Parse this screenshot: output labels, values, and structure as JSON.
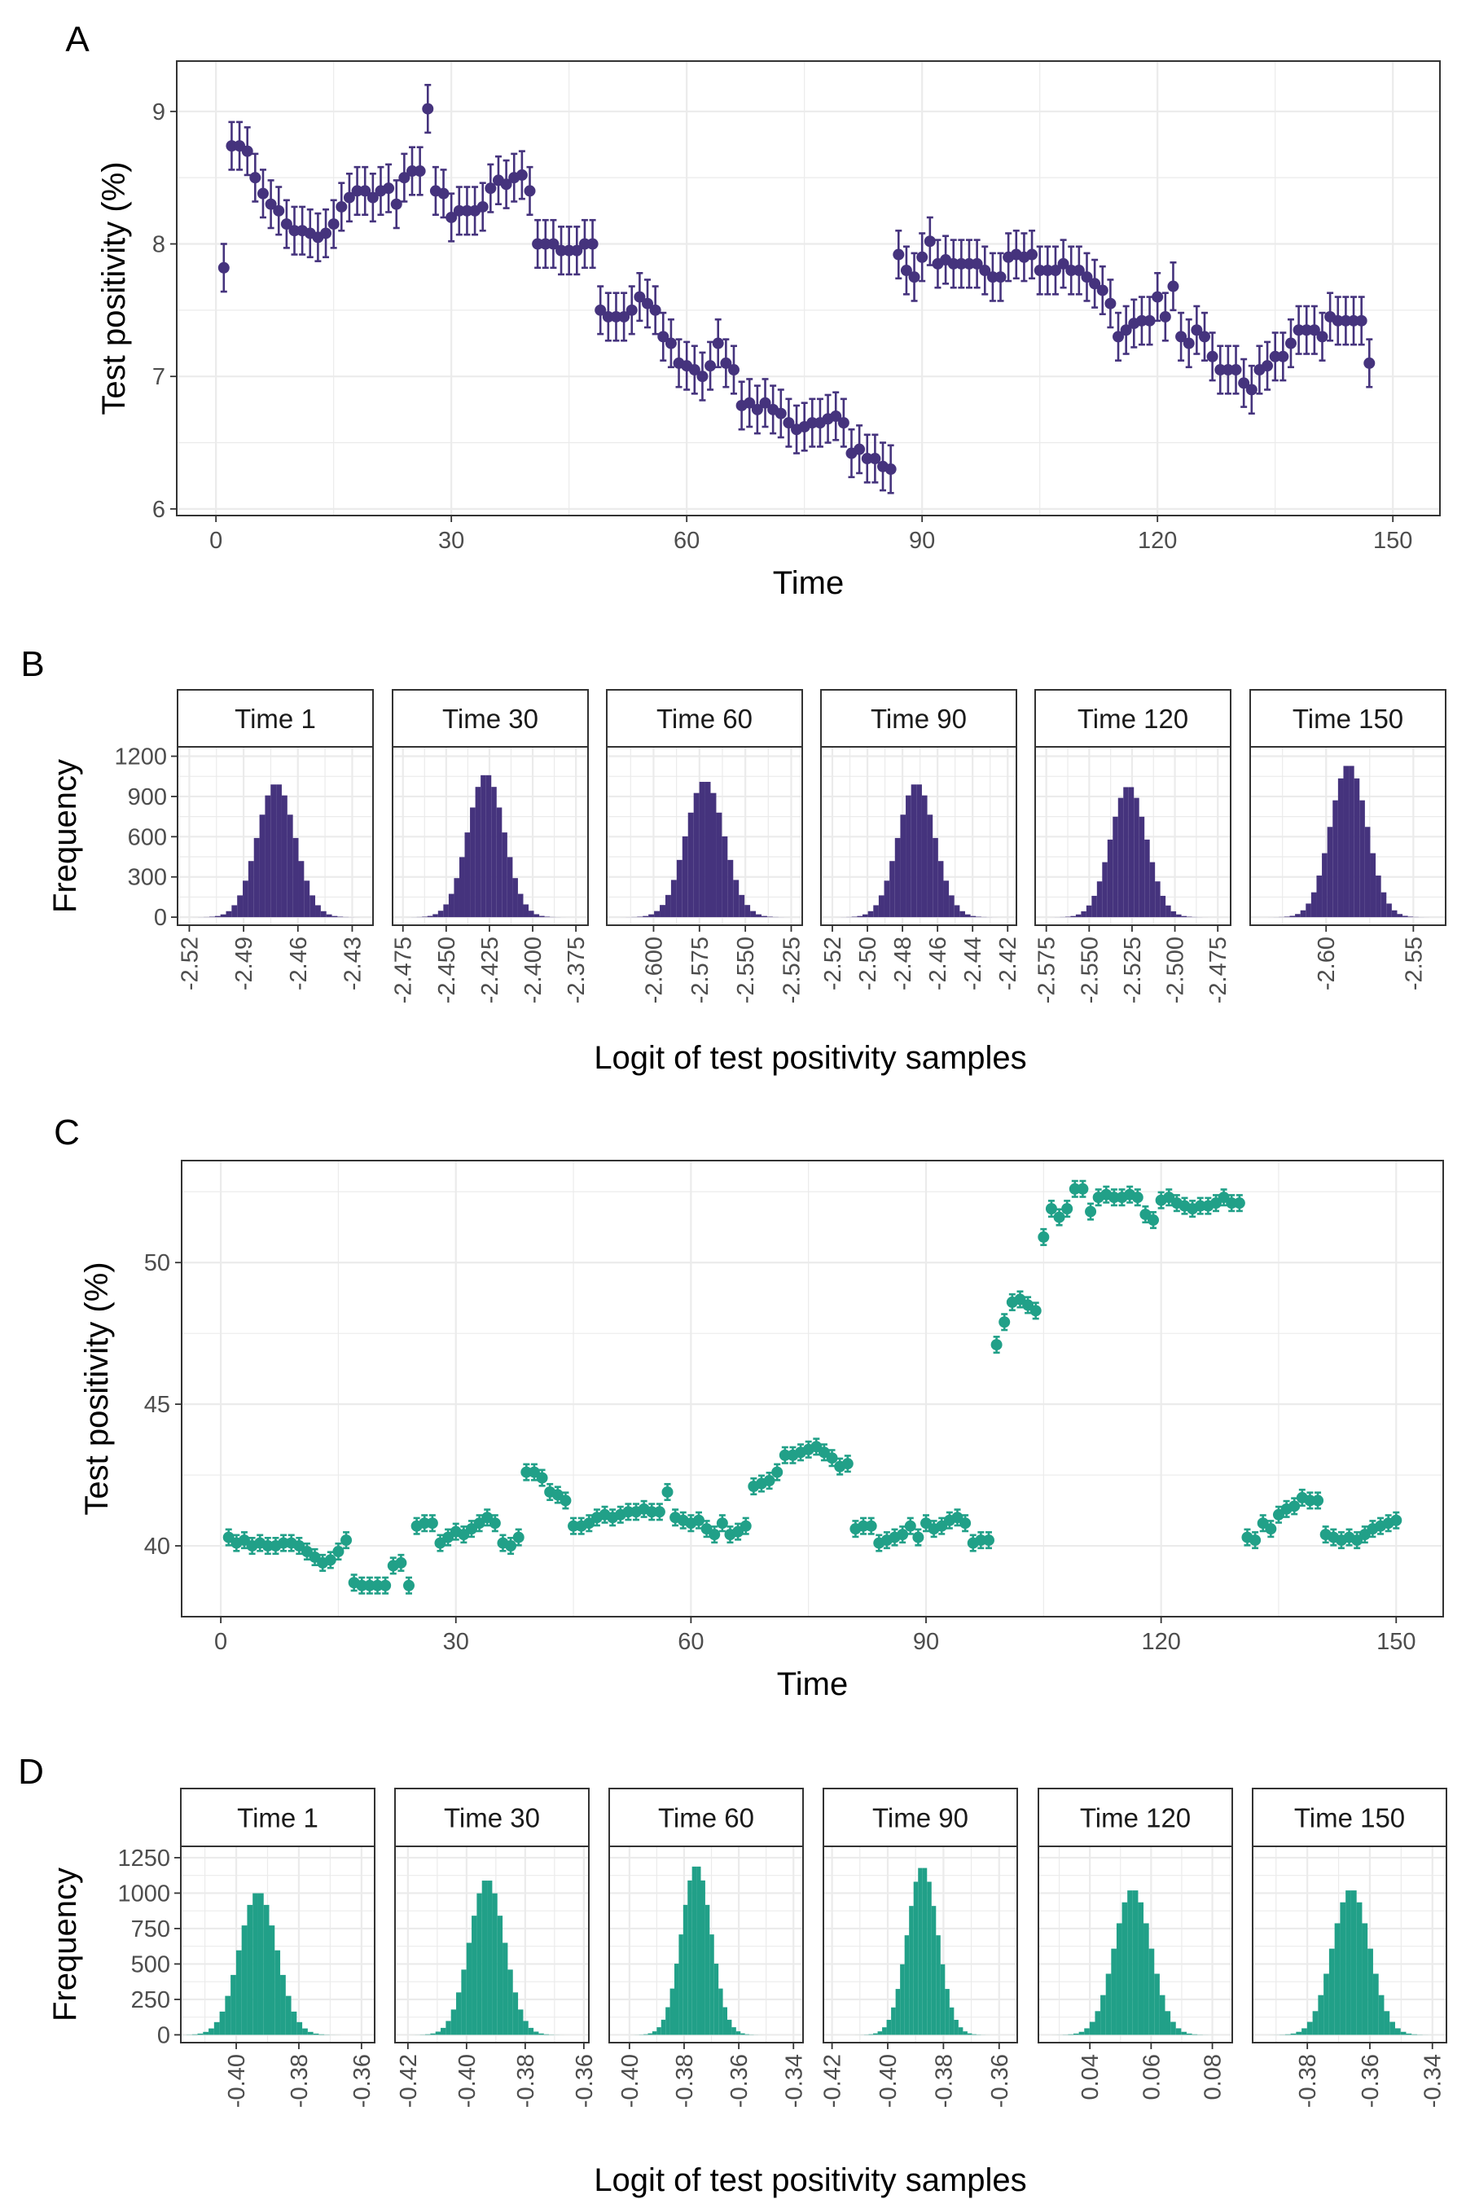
{
  "colors": {
    "purple": "#45337d",
    "teal": "#21a088",
    "grid": "#ebebeb",
    "frame": "#333333"
  },
  "chart_data": [
    {
      "panel": "A",
      "type": "scatter",
      "xlabel": "Time",
      "ylabel": "Test positivity (%)",
      "xlim": [
        -5,
        156
      ],
      "ylim": [
        5.95,
        9.38
      ],
      "xticks": [
        0,
        30,
        60,
        90,
        120,
        150
      ],
      "yticks": [
        6,
        7,
        8,
        9
      ],
      "error_bar_halfwidth": 0.18,
      "x_start": 1,
      "y": [
        7.82,
        8.74,
        8.74,
        8.7,
        8.5,
        8.38,
        8.3,
        8.25,
        8.15,
        8.1,
        8.1,
        8.08,
        8.05,
        8.08,
        8.15,
        8.28,
        8.35,
        8.4,
        8.4,
        8.35,
        8.4,
        8.42,
        8.3,
        8.5,
        8.55,
        8.55,
        9.02,
        8.4,
        8.38,
        8.2,
        8.25,
        8.25,
        8.25,
        8.28,
        8.42,
        8.48,
        8.45,
        8.5,
        8.52,
        8.4,
        8.0,
        8.0,
        8.0,
        7.95,
        7.95,
        7.95,
        8.0,
        8.0,
        7.5,
        7.45,
        7.45,
        7.45,
        7.5,
        7.6,
        7.55,
        7.5,
        7.3,
        7.25,
        7.1,
        7.08,
        7.05,
        7.0,
        7.08,
        7.25,
        7.1,
        7.05,
        6.78,
        6.8,
        6.75,
        6.8,
        6.75,
        6.72,
        6.65,
        6.6,
        6.62,
        6.65,
        6.65,
        6.68,
        6.7,
        6.65,
        6.42,
        6.45,
        6.38,
        6.38,
        6.32,
        6.3,
        7.92,
        7.8,
        7.75,
        7.9,
        8.02,
        7.85,
        7.88,
        7.85,
        7.85,
        7.85,
        7.85,
        7.8,
        7.75,
        7.75,
        7.9,
        7.92,
        7.9,
        7.92,
        7.8,
        7.8,
        7.8,
        7.85,
        7.8,
        7.8,
        7.75,
        7.7,
        7.65,
        7.55,
        7.3,
        7.35,
        7.4,
        7.42,
        7.42,
        7.6,
        7.45,
        7.68,
        7.3,
        7.25,
        7.35,
        7.3,
        7.15,
        7.05,
        7.05,
        7.05,
        6.95,
        6.9,
        7.05,
        7.08,
        7.15,
        7.15,
        7.25,
        7.35,
        7.35,
        7.35,
        7.3,
        7.45,
        7.42,
        7.42,
        7.42,
        7.42,
        7.1
      ]
    },
    {
      "panel": "B",
      "type": "bar",
      "xlabel": "Logit of test positivity samples",
      "ylabel": "Frequency",
      "ylim": [
        -60,
        1270
      ],
      "yticks": [
        0,
        300,
        600,
        900,
        1200
      ],
      "facets": [
        {
          "title": "Time 1",
          "xlim": [
            -2.5265,
            -2.4185
          ],
          "xticks": [
            -2.52,
            -2.49,
            -2.46,
            -2.43
          ],
          "ticklabels": [
            "-2.52",
            "-2.49",
            "-2.46",
            "-2.43"
          ],
          "center": -2.472,
          "sd": 0.0105,
          "peak": 1000
        },
        {
          "title": "Time 30",
          "xlim": [
            -2.481,
            -2.368
          ],
          "xticks": [
            -2.475,
            -2.45,
            -2.425,
            -2.4,
            -2.375
          ],
          "ticklabels": [
            "-2.475",
            "-2.450",
            "-2.425",
            "-2.400",
            "-2.375"
          ],
          "center": -2.427,
          "sd": 0.0105,
          "peak": 1070
        },
        {
          "title": "Time 60",
          "xlim": [
            -2.6255,
            -2.519
          ],
          "xticks": [
            -2.6,
            -2.575,
            -2.55,
            -2.525
          ],
          "ticklabels": [
            "-2.600",
            "-2.575",
            "-2.550",
            "-2.525"
          ],
          "center": -2.572,
          "sd": 0.0105,
          "peak": 1020
        },
        {
          "title": "Time 90",
          "xlim": [
            -2.5265,
            -2.415
          ],
          "xticks": [
            -2.52,
            -2.5,
            -2.48,
            -2.46,
            -2.44,
            -2.42
          ],
          "ticklabels": [
            "-2.52",
            "-2.50",
            "-2.48",
            "-2.46",
            "-2.44",
            "-2.42"
          ],
          "center": -2.472,
          "sd": 0.0105,
          "peak": 1000
        },
        {
          "title": "Time 120",
          "xlim": [
            -2.5815,
            -2.4675
          ],
          "xticks": [
            -2.575,
            -2.55,
            -2.525,
            -2.5,
            -2.475
          ],
          "ticklabels": [
            "-2.575",
            "-2.550",
            "-2.525",
            "-2.500",
            "-2.475"
          ],
          "center": -2.527,
          "sd": 0.0105,
          "peak": 980
        },
        {
          "title": "Time 150",
          "xlim": [
            -2.6435,
            -2.5315
          ],
          "xticks": [
            -2.6,
            -2.55
          ],
          "ticklabels": [
            "-2.60",
            "-2.55"
          ],
          "center": -2.587,
          "sd": 0.0105,
          "peak": 1140
        }
      ]
    },
    {
      "panel": "C",
      "type": "scatter",
      "xlabel": "Time",
      "ylabel": "Test positivity (%)",
      "xlim": [
        -5,
        156
      ],
      "ylim": [
        37.5,
        53.6
      ],
      "xticks": [
        0,
        30,
        60,
        90,
        120,
        150
      ],
      "yticks": [
        40,
        45,
        50
      ],
      "error_bar_halfwidth": 0.28,
      "x_start": 1,
      "y": [
        40.3,
        40.1,
        40.2,
        40.0,
        40.1,
        40.0,
        40.0,
        40.1,
        40.1,
        40.0,
        39.8,
        39.6,
        39.4,
        39.5,
        39.8,
        40.2,
        38.7,
        38.6,
        38.6,
        38.6,
        38.6,
        39.3,
        39.4,
        38.6,
        40.7,
        40.8,
        40.8,
        40.1,
        40.3,
        40.5,
        40.4,
        40.6,
        40.8,
        41.0,
        40.8,
        40.1,
        40.0,
        40.3,
        42.6,
        42.6,
        42.4,
        41.9,
        41.8,
        41.6,
        40.7,
        40.7,
        40.8,
        41.0,
        41.1,
        41.0,
        41.1,
        41.2,
        41.2,
        41.3,
        41.2,
        41.2,
        41.9,
        41.0,
        40.9,
        40.8,
        40.9,
        40.6,
        40.4,
        40.8,
        40.4,
        40.5,
        40.7,
        42.1,
        42.2,
        42.3,
        42.6,
        43.2,
        43.2,
        43.3,
        43.4,
        43.5,
        43.3,
        43.1,
        42.8,
        42.9,
        40.6,
        40.7,
        40.7,
        40.1,
        40.2,
        40.3,
        40.4,
        40.7,
        40.3,
        40.8,
        40.6,
        40.7,
        40.9,
        41.0,
        40.8,
        40.1,
        40.2,
        40.2,
        47.1,
        47.9,
        48.6,
        48.7,
        48.5,
        48.3,
        50.9,
        51.9,
        51.6,
        51.9,
        52.6,
        52.6,
        51.8,
        52.3,
        52.4,
        52.3,
        52.3,
        52.4,
        52.3,
        51.7,
        51.5,
        52.2,
        52.3,
        52.1,
        52.0,
        51.9,
        52.0,
        52.0,
        52.1,
        52.3,
        52.1,
        52.1,
        40.3,
        40.2,
        40.8,
        40.6,
        41.1,
        41.3,
        41.4,
        41.7,
        41.6,
        41.6,
        40.4,
        40.3,
        40.2,
        40.3,
        40.2,
        40.4,
        40.6,
        40.7,
        40.8,
        40.9
      ]
    },
    {
      "panel": "D",
      "type": "bar",
      "xlabel": "Logit of test positivity samples",
      "ylabel": "Frequency",
      "ylim": [
        -55,
        1330
      ],
      "yticks": [
        0,
        250,
        500,
        750,
        1000,
        1250
      ],
      "facets": [
        {
          "title": "Time 1",
          "xlim": [
            -0.4177,
            -0.3558
          ],
          "xticks": [
            -0.4,
            -0.38,
            -0.36
          ],
          "ticklabels": [
            "-0.40",
            "-0.38",
            "-0.36"
          ],
          "center": -0.393,
          "sd": 0.006,
          "peak": 1010
        },
        {
          "title": "Time 30",
          "xlim": [
            -0.4244,
            -0.3583
          ],
          "xticks": [
            -0.42,
            -0.4,
            -0.38,
            -0.36
          ],
          "ticklabels": [
            "-0.42",
            "-0.40",
            "-0.38",
            "-0.36"
          ],
          "center": -0.393,
          "sd": 0.006,
          "peak": 1100
        },
        {
          "title": "Time 60",
          "xlim": [
            -0.4074,
            -0.3365
          ],
          "xticks": [
            -0.4,
            -0.38,
            -0.36,
            -0.34
          ],
          "ticklabels": [
            "-0.40",
            "-0.38",
            "-0.36",
            "-0.34"
          ],
          "center": -0.3755,
          "sd": 0.0055,
          "peak": 1200
        },
        {
          "title": "Time 90",
          "xlim": [
            -0.4231,
            -0.3535
          ],
          "xticks": [
            -0.42,
            -0.4,
            -0.38,
            -0.36
          ],
          "ticklabels": [
            "-0.42",
            "-0.40",
            "-0.38",
            "-0.36"
          ],
          "center": -0.3875,
          "sd": 0.0055,
          "peak": 1190
        },
        {
          "title": "Time 120",
          "xlim": [
            0.0232,
            0.0865
          ],
          "xticks": [
            0.04,
            0.06,
            0.08
          ],
          "ticklabels": [
            "0.04",
            "0.06",
            "0.08"
          ],
          "center": 0.054,
          "sd": 0.006,
          "peak": 1030
        },
        {
          "title": "Time 150",
          "xlim": [
            -0.3975,
            -0.3355
          ],
          "xticks": [
            -0.38,
            -0.36,
            -0.34
          ],
          "ticklabels": [
            "-0.38",
            "-0.36",
            "-0.34"
          ],
          "center": -0.366,
          "sd": 0.006,
          "peak": 1030
        }
      ]
    }
  ]
}
